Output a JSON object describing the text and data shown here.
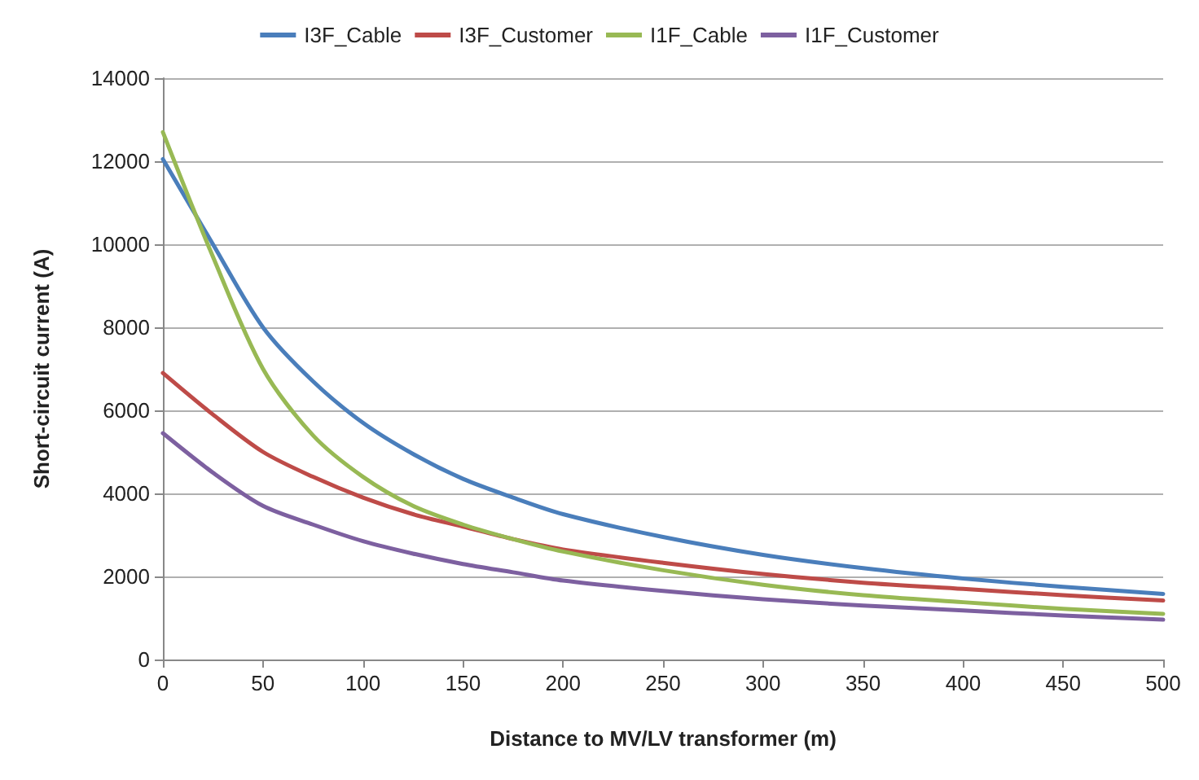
{
  "chart_data": {
    "type": "line",
    "xlabel": "Distance to MV/LV transformer (m)",
    "ylabel": "Short-circuit current (A)",
    "x": [
      0,
      25,
      50,
      75,
      100,
      125,
      150,
      175,
      200,
      250,
      300,
      350,
      400,
      450,
      500
    ],
    "xlim": [
      0,
      500
    ],
    "xticks": [
      0,
      50,
      100,
      150,
      200,
      250,
      300,
      350,
      400,
      450,
      500
    ],
    "ylim": [
      0,
      14000
    ],
    "yticks": [
      0,
      2000,
      4000,
      6000,
      8000,
      10000,
      12000,
      14000
    ],
    "grid": "y",
    "legend": "top",
    "marker": "none",
    "line_style": "solid",
    "series": [
      {
        "name": "I3F_Cable",
        "color": "#4a7ebb",
        "values": [
          12050,
          10000,
          8000,
          6700,
          5700,
          4950,
          4350,
          3900,
          3500,
          2950,
          2520,
          2200,
          1950,
          1750,
          1580
        ]
      },
      {
        "name": "I3F_Customer",
        "color": "#be4b48",
        "values": [
          6900,
          5900,
          5000,
          4400,
          3900,
          3500,
          3200,
          2900,
          2650,
          2330,
          2060,
          1850,
          1700,
          1550,
          1420
        ]
      },
      {
        "name": "I1F_Cable",
        "color": "#98b954",
        "values": [
          12700,
          9700,
          7000,
          5400,
          4400,
          3700,
          3250,
          2900,
          2600,
          2150,
          1800,
          1550,
          1380,
          1220,
          1100
        ]
      },
      {
        "name": "I1F_Customer",
        "color": "#7d60a0",
        "values": [
          5450,
          4500,
          3700,
          3250,
          2850,
          2550,
          2300,
          2100,
          1900,
          1650,
          1450,
          1300,
          1180,
          1060,
          960
        ]
      }
    ]
  }
}
